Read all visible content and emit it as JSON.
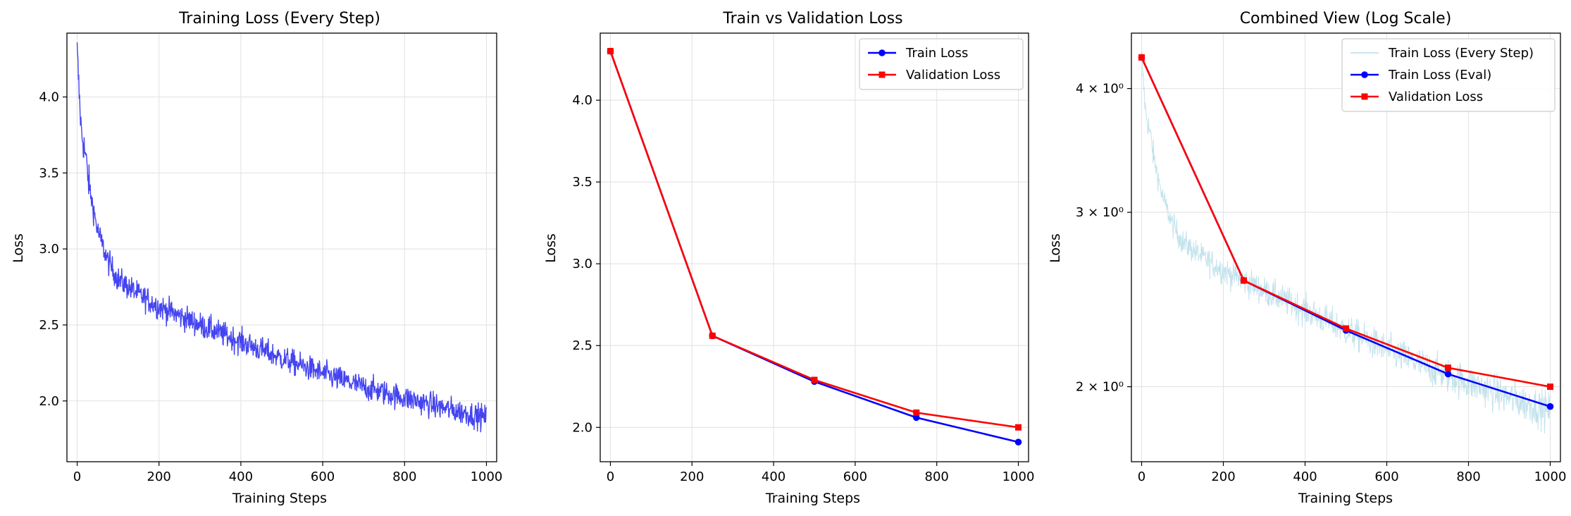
{
  "chart_data": [
    {
      "type": "line",
      "title": "Training Loss (Every Step)",
      "xlabel": "Training Steps",
      "ylabel": "Loss",
      "xlim": [
        -25,
        1025
      ],
      "ylim": [
        1.6,
        4.42
      ],
      "yscale": "linear",
      "grid": true,
      "xticks": [
        0,
        200,
        400,
        600,
        800,
        1000
      ],
      "xtick_labels": [
        "0",
        "200",
        "400",
        "600",
        "800",
        "1000"
      ],
      "yticks": [
        2.0,
        2.5,
        3.0,
        3.5,
        4.0
      ],
      "ytick_labels": [
        "2.0",
        "2.5",
        "3.0",
        "3.5",
        "4.0"
      ],
      "series": [
        {
          "color": "#3a3af0",
          "style": "noisy-line",
          "trend": {
            "x": [
              0,
              5,
              10,
              20,
              30,
              50,
              75,
              100,
              150,
              200,
              250,
              300,
              400,
              500,
              600,
              700,
              800,
              900,
              1000
            ],
            "y": [
              4.3,
              4.02,
              3.78,
              3.62,
              3.4,
              3.12,
              2.92,
              2.8,
              2.7,
              2.62,
              2.56,
              2.5,
              2.39,
              2.28,
              2.18,
              2.09,
              2.02,
              1.95,
              1.89
            ]
          },
          "noise": 0.06
        }
      ]
    },
    {
      "type": "line",
      "title": "Train vs Validation Loss",
      "xlabel": "Training Steps",
      "ylabel": "Loss",
      "xlim": [
        -25,
        1025
      ],
      "ylim": [
        1.79,
        4.41
      ],
      "yscale": "linear",
      "grid": true,
      "legend_position": "top-right",
      "xticks": [
        0,
        200,
        400,
        600,
        800,
        1000
      ],
      "xtick_labels": [
        "0",
        "200",
        "400",
        "600",
        "800",
        "1000"
      ],
      "yticks": [
        2.0,
        2.5,
        3.0,
        3.5,
        4.0
      ],
      "ytick_labels": [
        "2.0",
        "2.5",
        "3.0",
        "3.5",
        "4.0"
      ],
      "series": [
        {
          "name": "Train Loss",
          "color": "#0000ff",
          "marker": "circle",
          "x": [
            0,
            250,
            500,
            750,
            1000
          ],
          "y": [
            4.3,
            2.56,
            2.28,
            2.06,
            1.91
          ]
        },
        {
          "name": "Validation Loss",
          "color": "#ff0000",
          "marker": "square",
          "x": [
            0,
            250,
            500,
            750,
            1000
          ],
          "y": [
            4.3,
            2.56,
            2.29,
            2.09,
            2.0
          ]
        }
      ]
    },
    {
      "type": "line",
      "title": "Combined View (Log Scale)",
      "xlabel": "Training Steps",
      "ylabel": "Loss",
      "xlim": [
        -25,
        1025
      ],
      "ylim": [
        1.68,
        4.55
      ],
      "yscale": "log",
      "grid": true,
      "legend_position": "top-right",
      "xticks": [
        0,
        200,
        400,
        600,
        800,
        1000
      ],
      "xtick_labels": [
        "0",
        "200",
        "400",
        "600",
        "800",
        "1000"
      ],
      "yticks": [
        2,
        3,
        4
      ],
      "ytick_labels": [
        "2 × 10⁰",
        "3 × 10⁰",
        "4 × 10⁰"
      ],
      "series": [
        {
          "name": "Train Loss (Every Step)",
          "color": "#add8e6",
          "style": "noisy-line",
          "trend": {
            "x": [
              0,
              5,
              10,
              20,
              30,
              50,
              75,
              100,
              150,
              200,
              250,
              300,
              400,
              500,
              600,
              700,
              800,
              900,
              1000
            ],
            "y": [
              4.3,
              4.02,
              3.78,
              3.62,
              3.4,
              3.12,
              2.92,
              2.8,
              2.7,
              2.62,
              2.56,
              2.5,
              2.39,
              2.28,
              2.18,
              2.09,
              2.02,
              1.95,
              1.89
            ]
          },
          "noise": 0.06
        },
        {
          "name": "Train Loss (Eval)",
          "color": "#0000ff",
          "marker": "circle",
          "x": [
            0,
            250,
            500,
            750,
            1000
          ],
          "y": [
            4.3,
            2.56,
            2.28,
            2.06,
            1.91
          ]
        },
        {
          "name": "Validation Loss",
          "color": "#ff0000",
          "marker": "square",
          "x": [
            0,
            250,
            500,
            750,
            1000
          ],
          "y": [
            4.3,
            2.56,
            2.29,
            2.09,
            2.0
          ]
        }
      ]
    }
  ]
}
